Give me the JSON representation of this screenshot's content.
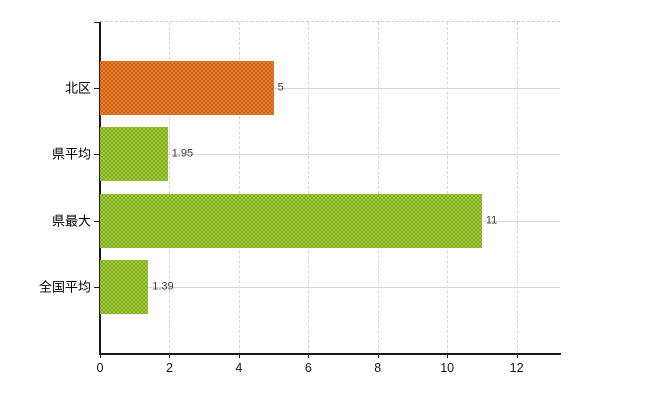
{
  "page": {
    "background": "#ffffff"
  },
  "chart_data": {
    "type": "bar",
    "orientation": "horizontal",
    "title": "",
    "xlabel": "",
    "ylabel": "",
    "categories": [
      "北区",
      "県平均",
      "県最大",
      "全国平均"
    ],
    "values": [
      5,
      1.95,
      11,
      1.39
    ],
    "value_labels": [
      "5",
      "1.95",
      "11",
      "1.39"
    ],
    "bar_palette": [
      "orange",
      "green",
      "green",
      "green"
    ],
    "colors": {
      "orange_base": "#e8812a",
      "orange_dot": "#cc5f17",
      "green_base": "#a0cc37",
      "green_dot": "#7fa928"
    },
    "xlim": [
      0,
      13.25
    ],
    "xticks": [
      0,
      2,
      4,
      6,
      8,
      10,
      12
    ],
    "grid": {
      "vertical_gridlines": true,
      "category_gridlines": true,
      "top_border_dashed": true
    },
    "axis_color": "#1a1a1a",
    "grid_color": "#d6d6d6",
    "label_color": "#000000",
    "value_label_color": "#3c3c3c",
    "legend": "none"
  }
}
